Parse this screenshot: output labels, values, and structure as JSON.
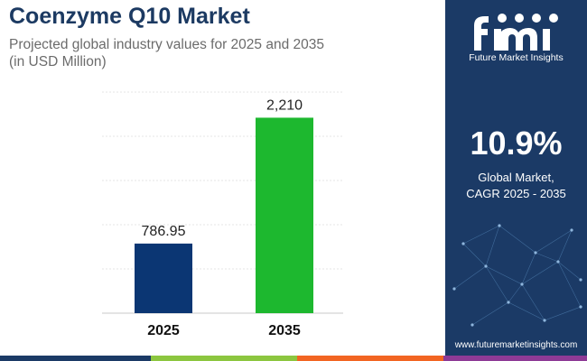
{
  "header": {
    "title": "Coenzyme Q10 Market",
    "subtitle_line1": "Projected global industry values for 2025 and 2035",
    "subtitle_line2": "(in USD Million)"
  },
  "chart_data": {
    "type": "bar",
    "title": "Coenzyme Q10 Market",
    "categories": [
      "2025",
      "2035"
    ],
    "values": [
      786.95,
      2210
    ],
    "value_labels": [
      "786.95",
      "2,210"
    ],
    "bar_colors": [
      "#0b3673",
      "#1db82f"
    ],
    "ylim": [
      0,
      2500
    ],
    "grid": true,
    "xlabel": "",
    "ylabel": ""
  },
  "side_panel": {
    "logo_text": "Future Market Insights",
    "cagr_value": "10.9%",
    "cagr_label_line1": "Global Market,",
    "cagr_label_line2": "CAGR 2025 - 2035",
    "website": "www.futuremarketinsights.com",
    "background": "#1b3a66"
  },
  "colors": {
    "title": "#1c3a62",
    "subtitle": "#6b6b6b",
    "stripe": [
      "#1b3a66",
      "#8cc63f",
      "#f26522",
      "#8e3a96"
    ]
  }
}
